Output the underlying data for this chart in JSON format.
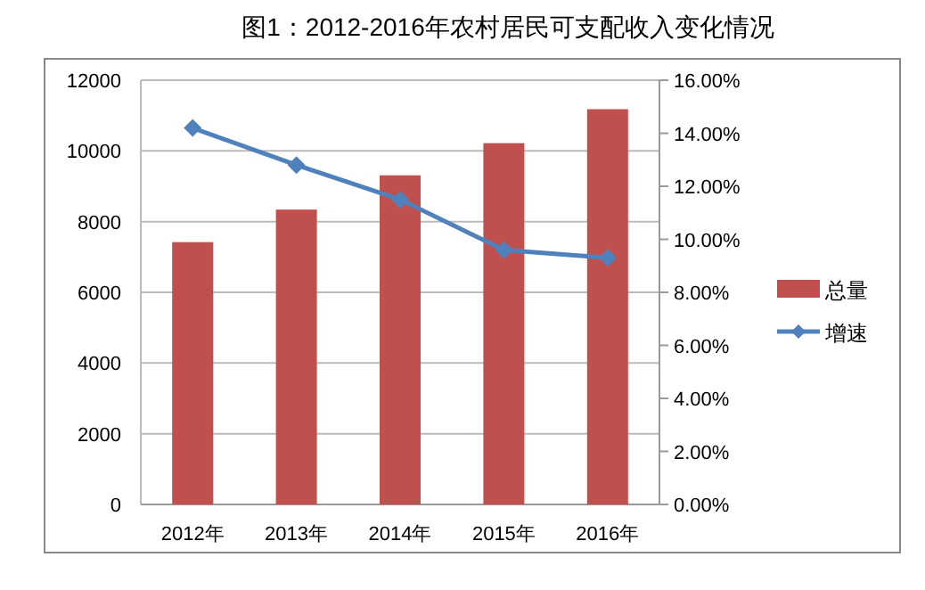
{
  "chart_data": {
    "type": "bar",
    "title": "图1：2012-2016年农村居民可支配收入变化情况",
    "categories": [
      "2012年",
      "2013年",
      "2014年",
      "2015年",
      "2016年"
    ],
    "series": [
      {
        "name": "总量",
        "color": "#c0504d",
        "values": [
          7420,
          8340,
          9310,
          10220,
          11180
        ]
      },
      {
        "name": "增速",
        "type": "line",
        "axis": "y2",
        "color": "#4f81bd",
        "marker": "diamond",
        "values": [
          14.2,
          12.8,
          11.5,
          9.6,
          9.3
        ]
      }
    ],
    "ylim": [
      0,
      12000
    ],
    "yticks": [
      0,
      2000,
      4000,
      6000,
      8000,
      10000,
      12000
    ],
    "y2lim": [
      0,
      16
    ],
    "y2ticks": [
      {
        "value": 0,
        "label": "0.00%"
      },
      {
        "value": 2,
        "label": "2.00%"
      },
      {
        "value": 4,
        "label": "4.00%"
      },
      {
        "value": 6,
        "label": "6.00%"
      },
      {
        "value": 8,
        "label": "8.00%"
      },
      {
        "value": 10,
        "label": "10.00%"
      },
      {
        "value": 12,
        "label": "12.00%"
      },
      {
        "value": 14,
        "label": "14.00%"
      },
      {
        "value": 16,
        "label": "16.00%"
      }
    ],
    "grid": "y",
    "legend": "right"
  }
}
